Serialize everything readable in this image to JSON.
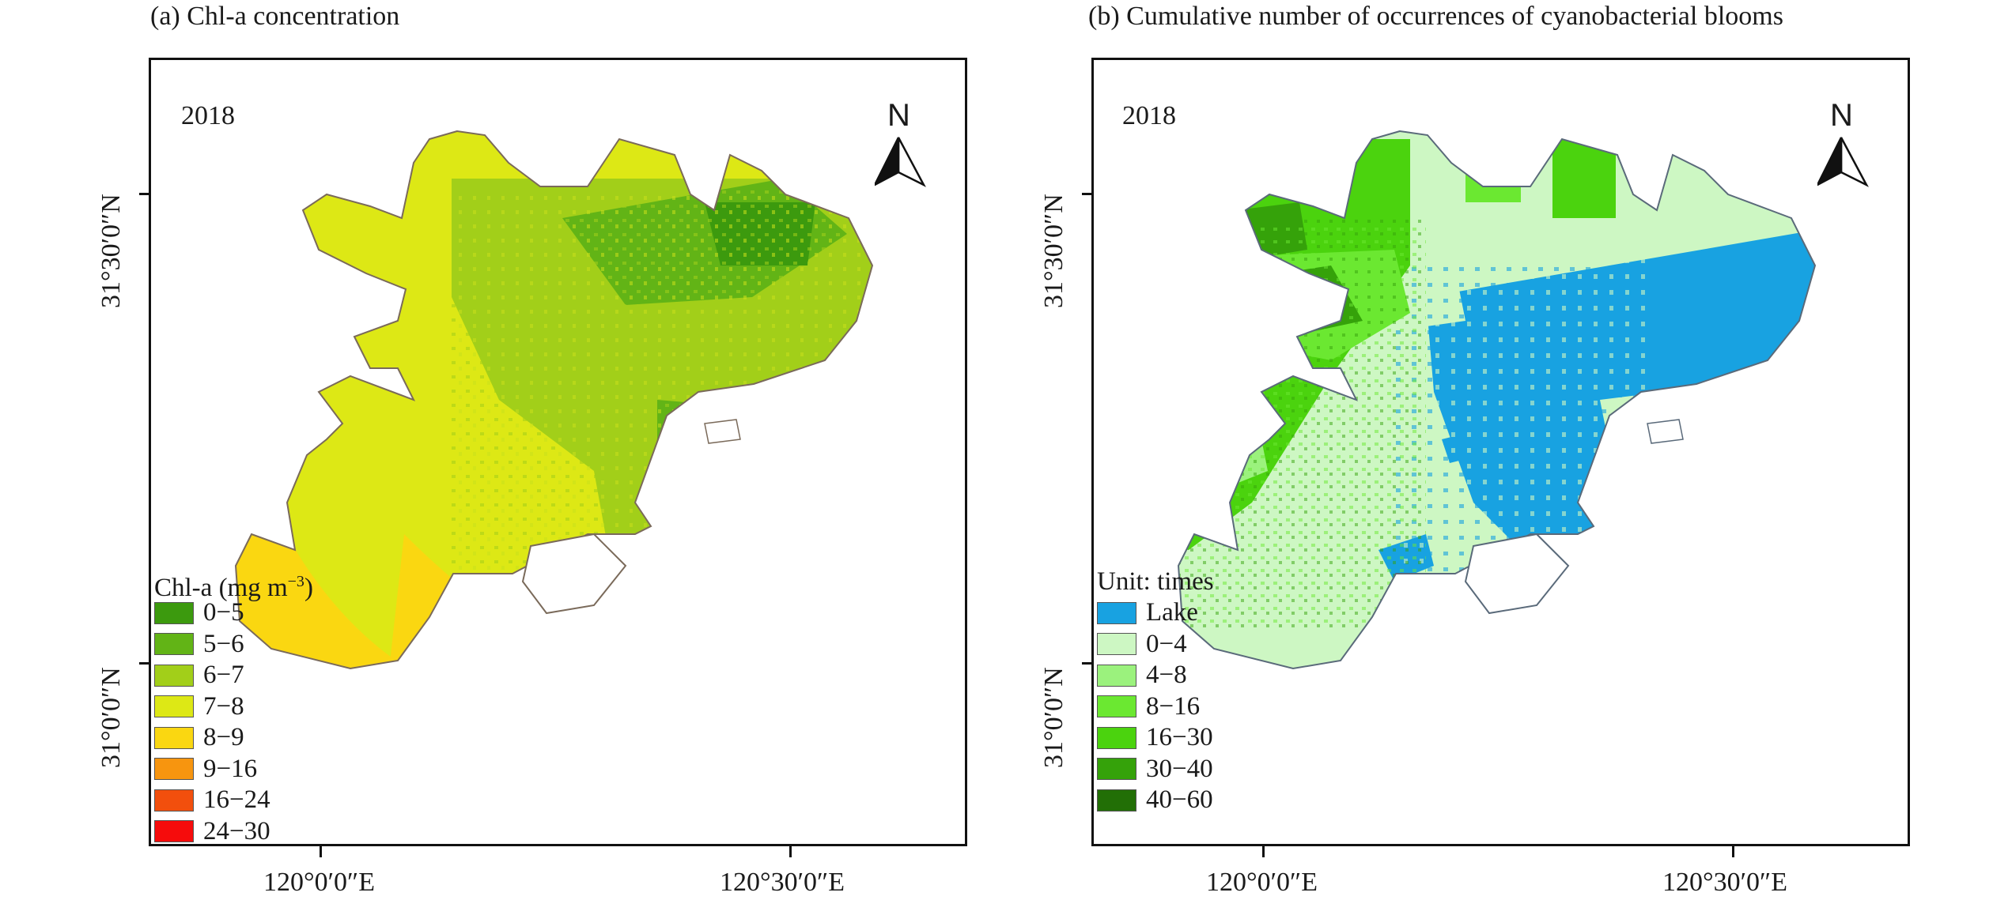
{
  "panel_a": {
    "title": "(a) Chl-a concentration",
    "year": "2018",
    "north_label": "N",
    "y_ticks": [
      "31°30′0″N",
      "31°0′0″N"
    ],
    "x_ticks": [
      "120°0′0″E",
      "120°30′0″E"
    ],
    "legend": {
      "title_main": "Chl-a (mg m",
      "title_sup": "−3",
      "title_end": ")",
      "items": [
        {
          "label": "0−5",
          "color": "#3c9a0e"
        },
        {
          "label": "5−6",
          "color": "#62b416"
        },
        {
          "label": "6−7",
          "color": "#a2cf19"
        },
        {
          "label": "7−8",
          "color": "#dde815"
        },
        {
          "label": "8−9",
          "color": "#fad711"
        },
        {
          "label": "9−16",
          "color": "#f7950f"
        },
        {
          "label": "16−24",
          "color": "#f24f0d"
        },
        {
          "label": "24−30",
          "color": "#f60c0c"
        }
      ]
    }
  },
  "panel_b": {
    "title": "(b) Cumulative number of occurrences of cyanobacterial blooms",
    "year": "2018",
    "north_label": "N",
    "y_ticks": [
      "31°30′0″N",
      "31°0′0″N"
    ],
    "x_ticks": [
      "120°0′0″E",
      "120°30′0″E"
    ],
    "legend": {
      "title": "Unit: times",
      "items": [
        {
          "label": "Lake",
          "color": "#18a2e1"
        },
        {
          "label": "0−4",
          "color": "#cdf7c3"
        },
        {
          "label": "4−8",
          "color": "#9bf27d"
        },
        {
          "label": "8−16",
          "color": "#6be831"
        },
        {
          "label": "16−30",
          "color": "#4bd30e"
        },
        {
          "label": "30−40",
          "color": "#35a20a"
        },
        {
          "label": "40−60",
          "color": "#226f06"
        }
      ]
    }
  }
}
